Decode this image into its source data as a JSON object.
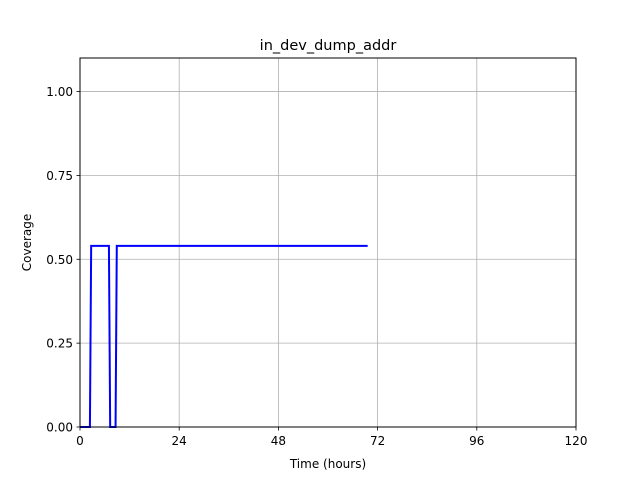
{
  "chart_data": {
    "type": "line",
    "title": "in_dev_dump_addr",
    "xlabel": "Time (hours)",
    "ylabel": "Coverage",
    "xlim": [
      0,
      120
    ],
    "ylim": [
      0,
      1.1
    ],
    "xticks": [
      0,
      24,
      48,
      72,
      96,
      120
    ],
    "xtick_labels": [
      "0",
      "24",
      "48",
      "72",
      "96",
      "120"
    ],
    "yticks": [
      0.0,
      0.25,
      0.5,
      0.75,
      1.0
    ],
    "ytick_labels": [
      "0.00",
      "0.25",
      "0.50",
      "0.75",
      "1.00"
    ],
    "grid": true,
    "series": [
      {
        "color": "#0000ff",
        "x": [
          0,
          2.4,
          2.7,
          7.0,
          7.3,
          8.6,
          8.9,
          69.6
        ],
        "y": [
          0,
          0,
          0.54,
          0.54,
          0,
          0,
          0.54,
          0.54
        ]
      }
    ]
  }
}
